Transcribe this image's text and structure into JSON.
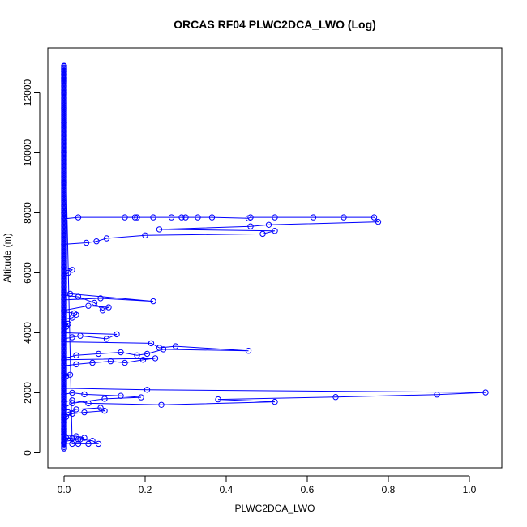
{
  "chart_data": {
    "type": "line",
    "title": "ORCAS RF04 PLWC2DCA_LWO (Log)",
    "xlabel": "PLWC2DCA_LWO",
    "ylabel": "Altitude (m)",
    "xlim": [
      -0.04,
      1.08
    ],
    "ylim": [
      -500,
      13500
    ],
    "xticks": [
      0.0,
      0.2,
      0.4,
      0.6,
      0.8,
      1.0
    ],
    "xtick_labels": [
      "0.0",
      "0.2",
      "0.4",
      "0.6",
      "0.8",
      "1.0"
    ],
    "yticks": [
      0,
      2000,
      4000,
      6000,
      8000,
      10000,
      12000
    ],
    "ytick_labels": [
      "0",
      "2000",
      "4000",
      "6000",
      "8000",
      "10000",
      "12000"
    ],
    "series_color": "#0000ff",
    "marker": "open-circle",
    "grid": false,
    "series": [
      {
        "x": [
          0.0,
          0.0,
          0.0,
          0.0,
          0.0,
          0.0,
          0.0,
          0.0,
          0.0,
          0.0,
          0.0,
          0.0,
          0.0,
          0.0,
          0.0,
          0.02,
          0.035,
          0.06,
          0.085,
          0.07,
          0.04,
          0.02,
          0.005,
          0.0,
          0.0,
          0.0,
          0.01,
          0.035,
          0.05,
          0.03,
          0.0,
          0.0,
          0.005,
          0.02,
          0.05,
          0.1,
          0.09,
          0.03,
          0.01,
          0.0,
          0.0,
          0.02,
          0.1,
          0.19,
          0.14,
          0.05,
          0.02,
          0.0,
          0.0,
          0.02,
          0.06,
          0.24,
          0.52,
          0.38,
          0.67,
          0.92,
          1.04,
          0.205,
          0.0,
          0.0,
          0.005,
          0.015,
          0.0,
          0.0,
          0.03,
          0.07,
          0.115,
          0.15,
          0.195,
          0.225,
          0.0,
          0.0,
          0.03,
          0.085,
          0.14,
          0.18,
          0.205,
          0.245,
          0.455,
          0.275,
          0.235,
          0.215,
          0.0,
          0.0,
          0.02,
          0.04,
          0.105,
          0.13,
          0.0,
          0.0,
          0.005,
          0.01,
          0.0,
          0.0,
          0.02,
          0.03,
          0.025,
          0.0,
          0.0,
          0.06,
          0.11,
          0.095,
          0.075,
          0.035,
          0.0,
          0.0,
          0.09,
          0.22,
          0.015,
          0.0,
          0.0,
          0.01,
          0.02,
          0.0,
          0.0,
          0.055,
          0.08,
          0.105,
          0.2,
          0.49,
          0.52,
          0.235,
          0.46,
          0.505,
          0.775,
          0.765,
          0.69,
          0.615,
          0.52,
          0.46,
          0.455,
          0.365,
          0.33,
          0.3,
          0.29,
          0.265,
          0.22,
          0.18,
          0.175,
          0.15,
          0.035,
          0.0,
          0.0,
          0.0,
          0.0,
          0.0,
          0.0,
          0.0
        ],
        "y": [
          150,
          300,
          450,
          600,
          800,
          1000,
          1100,
          1200,
          12900,
          12800,
          12700,
          12600,
          12500,
          12400,
          12300,
          300,
          300,
          300,
          300,
          400,
          450,
          480,
          500,
          350,
          300,
          350,
          400,
          450,
          500,
          550,
          600,
          700,
          1200,
          1300,
          1350,
          1400,
          1500,
          1450,
          1350,
          1250,
          1500,
          1650,
          1800,
          1850,
          1900,
          1950,
          2000,
          1950,
          1700,
          1750,
          1650,
          1600,
          1700,
          1780,
          1860,
          1940,
          2010,
          2100,
          2150,
          2500,
          2550,
          2600,
          2650,
          2900,
          2950,
          3000,
          3050,
          3000,
          3100,
          3150,
          3100,
          3150,
          3250,
          3300,
          3350,
          3250,
          3300,
          3450,
          3400,
          3550,
          3500,
          3650,
          3700,
          3800,
          3850,
          3900,
          3800,
          3950,
          4000,
          4150,
          4200,
          4300,
          4350,
          4450,
          4500,
          4600,
          4650,
          4700,
          4750,
          4900,
          4850,
          4750,
          5000,
          5200,
          5250,
          5100,
          5150,
          5050,
          5300,
          5350,
          5900,
          6000,
          6100,
          6200,
          6950,
          7000,
          7050,
          7150,
          7250,
          7300,
          7400,
          7450,
          7550,
          7600,
          7700,
          7850,
          7850,
          7850,
          7850,
          7850,
          7820,
          7850,
          7850,
          7850,
          7850,
          7850,
          7850,
          7850,
          7850,
          7850,
          7850,
          7800,
          8000,
          9000,
          10000,
          11000,
          11500,
          12000
        ]
      }
    ]
  }
}
